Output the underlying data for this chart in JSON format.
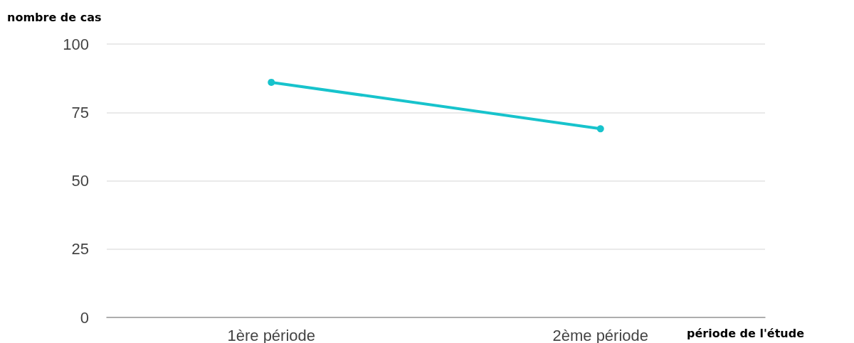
{
  "chart_data": {
    "type": "line",
    "xlabel": "période de l'étude",
    "ylabel": "nombre de cas",
    "categories": [
      "1ère période",
      "2ème période"
    ],
    "series": [
      {
        "color": "#17c3cc",
        "values": [
          86,
          69
        ]
      }
    ],
    "ylim": [
      0,
      100
    ],
    "yticks": [
      0,
      25,
      50,
      75,
      100
    ],
    "grid": "y",
    "marker": "circle",
    "line_style": "solid"
  }
}
